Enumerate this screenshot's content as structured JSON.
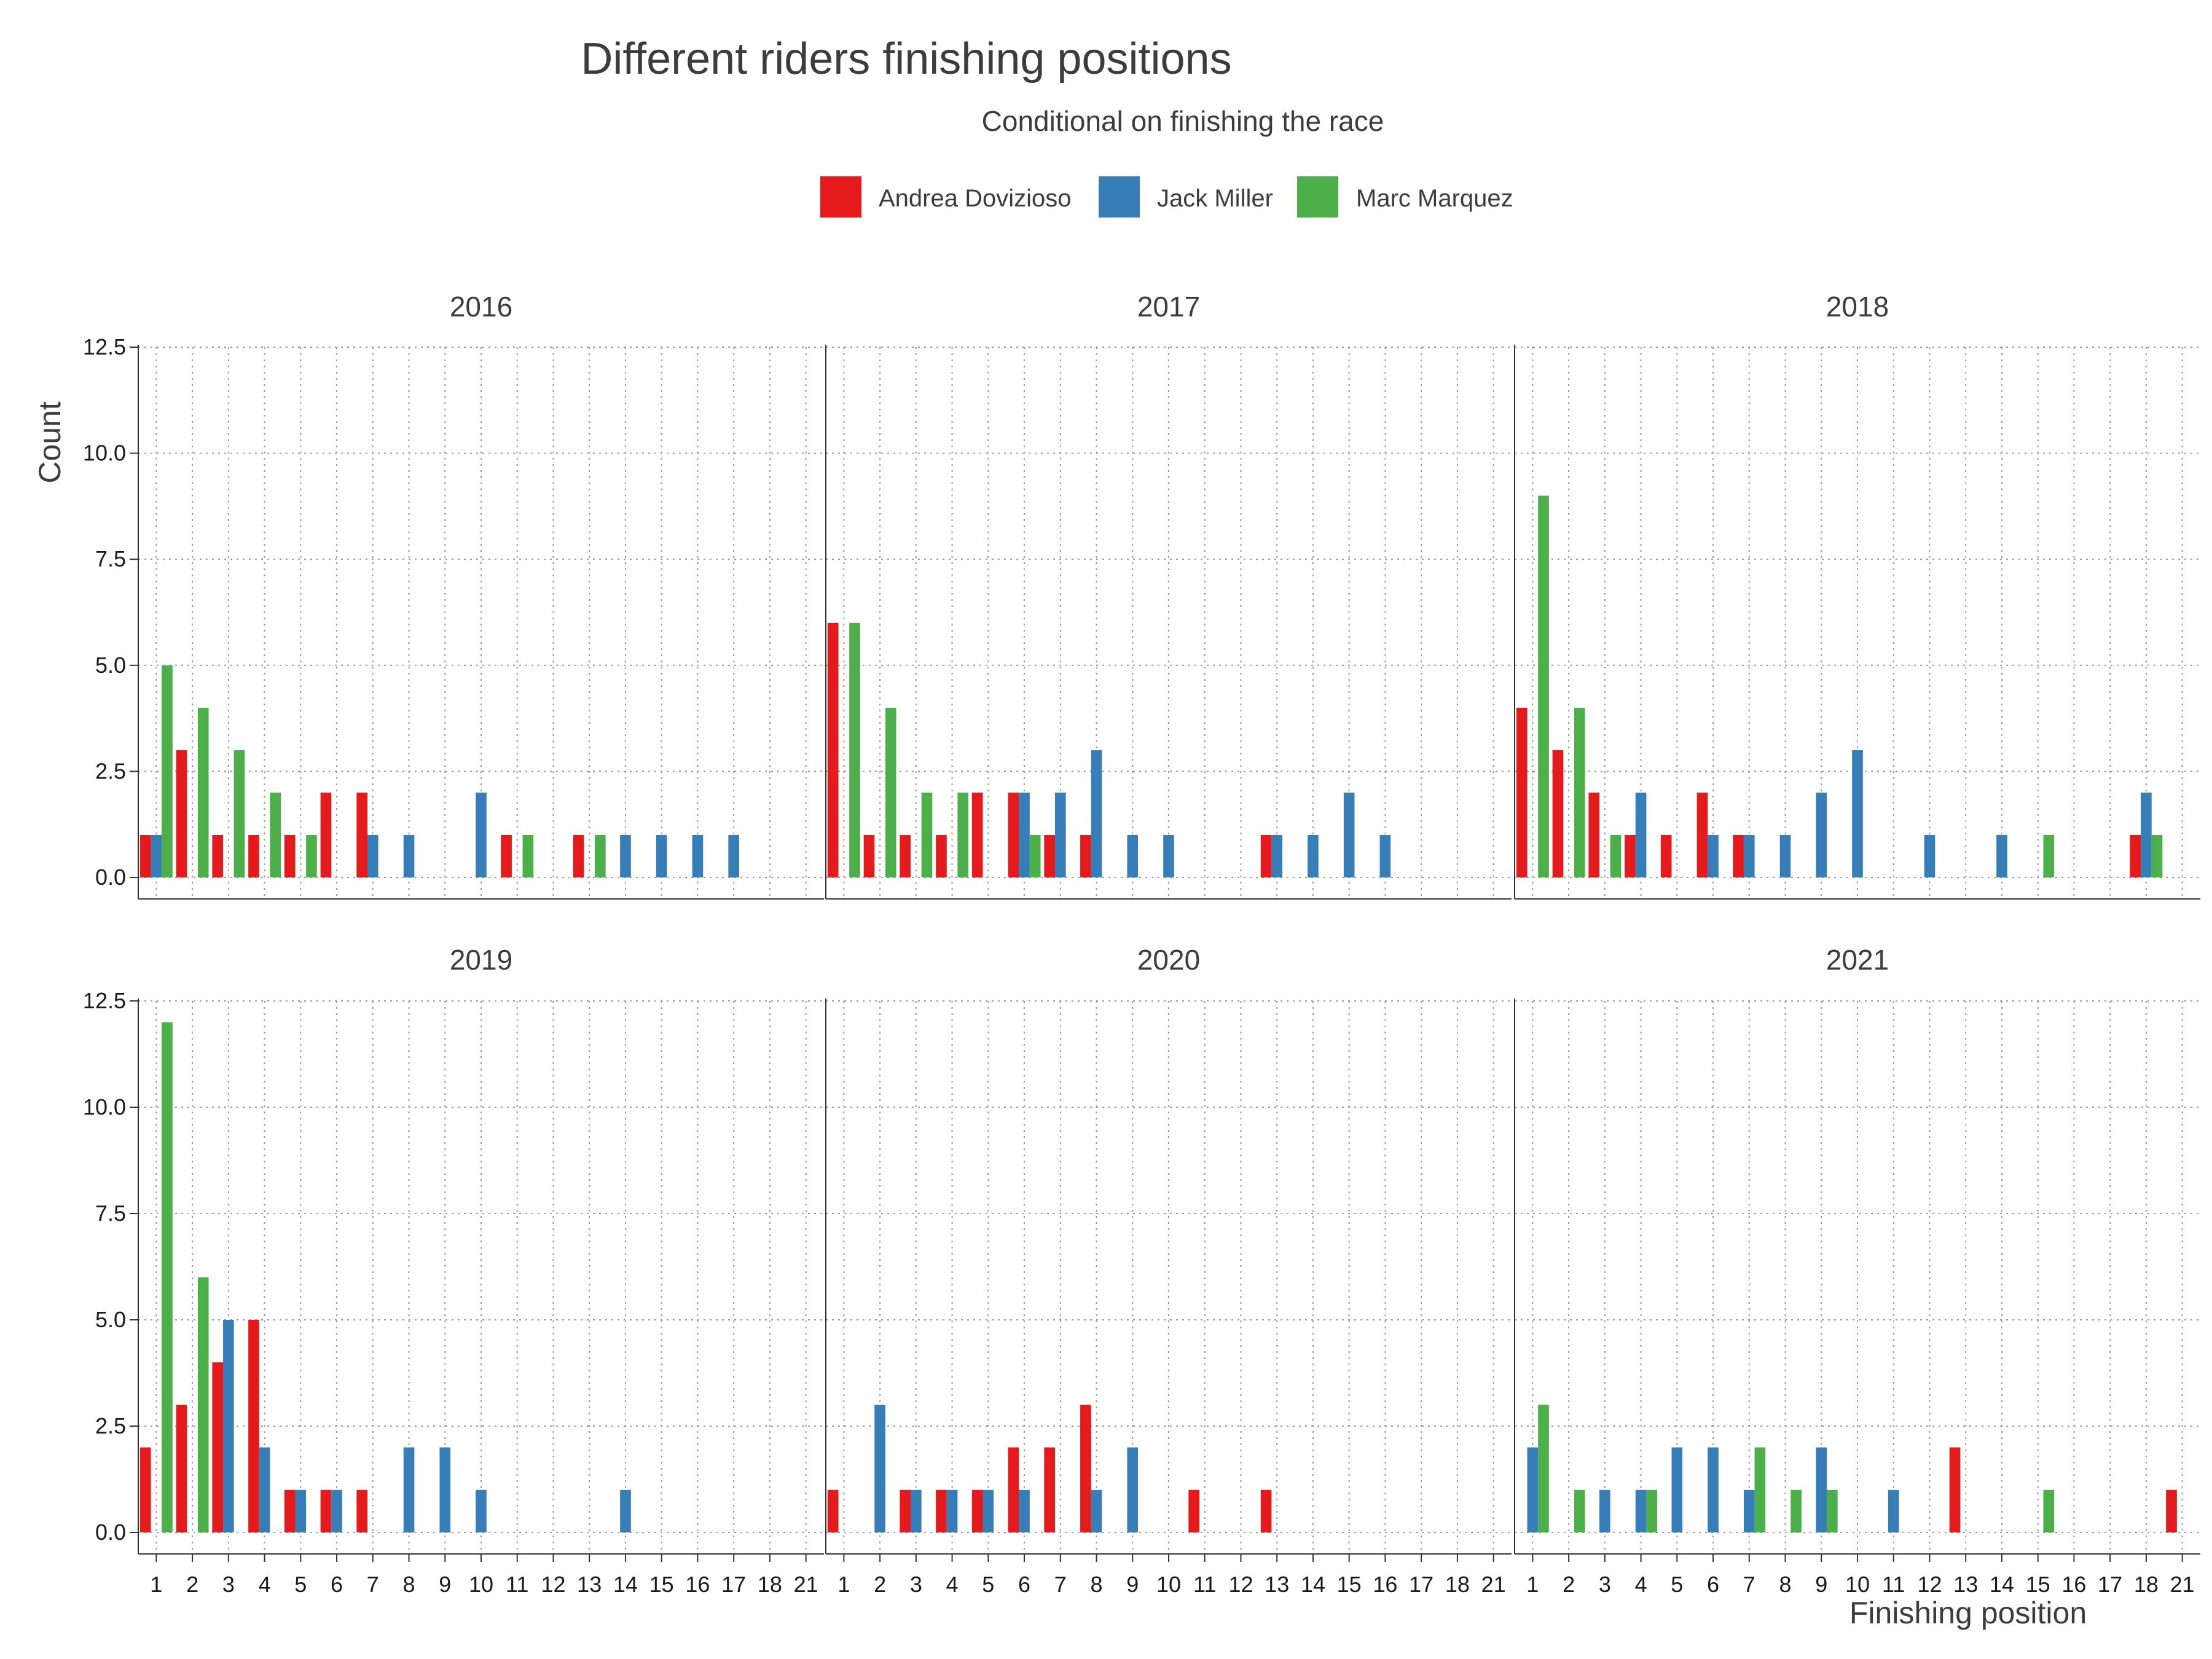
{
  "chart_data": {
    "type": "bar",
    "title": "Different riders finishing positions",
    "subtitle": "Conditional on finishing the race",
    "xlabel": "Finishing position",
    "ylabel": "Count",
    "ylim": [
      0,
      12.5
    ],
    "yticks": [
      "0.0",
      "2.5",
      "5.0",
      "7.5",
      "10.0",
      "12.5"
    ],
    "categories": [
      "1",
      "2",
      "3",
      "4",
      "5",
      "6",
      "7",
      "8",
      "9",
      "10",
      "11",
      "12",
      "13",
      "14",
      "15",
      "16",
      "17",
      "18",
      "21"
    ],
    "grid": true,
    "legend_position": "top",
    "series": [
      {
        "name": "Andrea Dovizioso",
        "color": "#e41a1c"
      },
      {
        "name": "Jack Miller",
        "color": "#377eb8"
      },
      {
        "name": "Marc Marquez",
        "color": "#4daf4a"
      }
    ],
    "panels": [
      {
        "label": "2016",
        "values": [
          [
            1,
            3,
            1,
            1,
            1,
            2,
            2,
            0,
            0,
            0,
            1,
            0,
            1,
            0,
            0,
            0,
            0,
            0,
            0
          ],
          [
            1,
            0,
            0,
            0,
            0,
            0,
            1,
            1,
            0,
            2,
            0,
            0,
            0,
            1,
            1,
            1,
            1,
            0,
            0
          ],
          [
            5,
            4,
            3,
            2,
            1,
            0,
            0,
            0,
            0,
            0,
            1,
            0,
            1,
            0,
            0,
            0,
            0,
            0,
            0
          ]
        ]
      },
      {
        "label": "2017",
        "values": [
          [
            6,
            1,
            1,
            1,
            2,
            2,
            1,
            1,
            0,
            0,
            0,
            0,
            1,
            0,
            0,
            0,
            0,
            0,
            0
          ],
          [
            0,
            0,
            0,
            0,
            0,
            2,
            2,
            3,
            1,
            1,
            0,
            0,
            1,
            1,
            2,
            1,
            0,
            0,
            0
          ],
          [
            6,
            4,
            2,
            2,
            0,
            1,
            0,
            0,
            0,
            0,
            0,
            0,
            0,
            0,
            0,
            0,
            0,
            0,
            0
          ]
        ]
      },
      {
        "label": "2018",
        "values": [
          [
            4,
            3,
            2,
            1,
            1,
            2,
            1,
            0,
            0,
            0,
            0,
            0,
            0,
            0,
            0,
            0,
            0,
            1,
            0
          ],
          [
            0,
            0,
            0,
            2,
            0,
            1,
            1,
            1,
            2,
            3,
            0,
            1,
            0,
            1,
            0,
            0,
            0,
            2,
            0
          ],
          [
            9,
            4,
            1,
            0,
            0,
            0,
            0,
            0,
            0,
            0,
            0,
            0,
            0,
            0,
            1,
            0,
            0,
            1,
            0
          ]
        ]
      },
      {
        "label": "2019",
        "values": [
          [
            2,
            3,
            4,
            5,
            1,
            1,
            1,
            0,
            0,
            0,
            0,
            0,
            0,
            0,
            0,
            0,
            0,
            0,
            0
          ],
          [
            0,
            0,
            5,
            2,
            1,
            1,
            0,
            2,
            2,
            1,
            0,
            0,
            0,
            1,
            0,
            0,
            0,
            0,
            0
          ],
          [
            12,
            6,
            0,
            0,
            0,
            0,
            0,
            0,
            0,
            0,
            0,
            0,
            0,
            0,
            0,
            0,
            0,
            0,
            0
          ]
        ]
      },
      {
        "label": "2020",
        "values": [
          [
            1,
            0,
            1,
            1,
            1,
            2,
            2,
            3,
            0,
            0,
            1,
            0,
            1,
            0,
            0,
            0,
            0,
            0,
            0
          ],
          [
            0,
            3,
            1,
            1,
            1,
            1,
            0,
            1,
            2,
            0,
            0,
            0,
            0,
            0,
            0,
            0,
            0,
            0,
            0
          ],
          [
            0,
            0,
            0,
            0,
            0,
            0,
            0,
            0,
            0,
            0,
            0,
            0,
            0,
            0,
            0,
            0,
            0,
            0,
            0
          ]
        ]
      },
      {
        "label": "2021",
        "values": [
          [
            0,
            0,
            0,
            0,
            0,
            0,
            0,
            0,
            0,
            0,
            0,
            0,
            2,
            0,
            0,
            0,
            0,
            0,
            1
          ],
          [
            2,
            0,
            1,
            1,
            2,
            2,
            1,
            0,
            2,
            0,
            1,
            0,
            0,
            0,
            0,
            0,
            0,
            0,
            0
          ],
          [
            3,
            1,
            0,
            1,
            0,
            0,
            2,
            1,
            1,
            0,
            0,
            0,
            0,
            0,
            1,
            0,
            0,
            0,
            0
          ]
        ]
      }
    ]
  }
}
